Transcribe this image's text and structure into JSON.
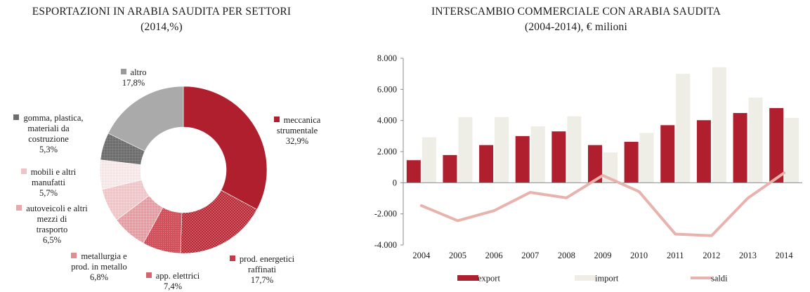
{
  "chart_data": [
    {
      "type": "pie",
      "title": "ESPORTAZIONI IN ARABIA SAUDITA PER SETTORI",
      "subtitle": "(2014,%)",
      "slices": [
        {
          "label": "meccanica strumentale",
          "label_lines": [
            "meccanica",
            "strumentale"
          ],
          "value": 32.9,
          "value_label": "32,9%",
          "color": "#b01f2e",
          "pattern": "solid"
        },
        {
          "label": "prod. energetici raffinati",
          "label_lines": [
            "prod. energetici",
            "raffinati"
          ],
          "value": 17.7,
          "value_label": "17,7%",
          "color": "#b01f2e",
          "pattern": "crosshatch"
        },
        {
          "label": "app. elettrici",
          "label_lines": [
            "app. elettrici"
          ],
          "value": 7.4,
          "value_label": "7,4%",
          "color": "#d4646d",
          "pattern": "dots"
        },
        {
          "label": "metallurgia e prod. in metallo",
          "label_lines": [
            "metallurgia e",
            "prod. in metallo"
          ],
          "value": 6.8,
          "value_label": "6,8%",
          "color": "#e08d93",
          "pattern": "grid"
        },
        {
          "label": "autoveicoli e altri mezzi di trasporto",
          "label_lines": [
            "autoveicoli e altri",
            "mezzi di",
            "trasporto"
          ],
          "value": 6.5,
          "value_label": "6,5%",
          "color": "#efbcbf",
          "pattern": "grid"
        },
        {
          "label": "mobili e altri manufatti",
          "label_lines": [
            "mobili e altri",
            "manufatti"
          ],
          "value": 5.7,
          "value_label": "5,7%",
          "color": "#f7dfe0",
          "pattern": "grid"
        },
        {
          "label": "gomma, plastica, materiali da costruzione",
          "label_lines": [
            "gomma, plastica,",
            "materiali da",
            "costruzione"
          ],
          "value": 5.3,
          "value_label": "5,3%",
          "color": "#6d6d6d",
          "pattern": "grid"
        },
        {
          "label": "altro",
          "label_lines": [
            "altro"
          ],
          "value": 17.8,
          "value_label": "17,8%",
          "color": "#aaaaaa",
          "pattern": "solid"
        }
      ]
    },
    {
      "type": "bar",
      "title": "INTERSCAMBIO COMMERCIALE CON ARABIA SAUDITA",
      "subtitle": "(2004-2014), € milioni",
      "categories": [
        "2004",
        "2005",
        "2006",
        "2007",
        "2008",
        "2009",
        "2010",
        "2011",
        "2012",
        "2013",
        "2014"
      ],
      "series": [
        {
          "name": "export",
          "kind": "bar",
          "color": "#b01f2e",
          "values": [
            1450,
            1780,
            2420,
            3000,
            3300,
            2420,
            2630,
            3700,
            4020,
            4480,
            4800
          ]
        },
        {
          "name": "import",
          "kind": "bar",
          "color": "#eeede6",
          "values": [
            2920,
            4220,
            4220,
            3620,
            4270,
            1950,
            3200,
            7000,
            7420,
            5470,
            4170
          ]
        },
        {
          "name": "saldi",
          "kind": "line",
          "color": "#e8b3ae",
          "values": [
            -1470,
            -2440,
            -1800,
            -620,
            -970,
            470,
            -570,
            -3300,
            -3400,
            -990,
            630
          ]
        }
      ],
      "ylim": [
        -4000,
        8000
      ],
      "yticks": [
        -4000,
        -2000,
        0,
        2000,
        4000,
        6000,
        8000
      ],
      "ytick_labels": [
        "-4.000",
        "-2.000",
        "0",
        "2.000",
        "4.000",
        "6.000",
        "8.000"
      ],
      "xlabel": "",
      "ylabel": "",
      "grid": false,
      "legend": "bottom"
    }
  ]
}
